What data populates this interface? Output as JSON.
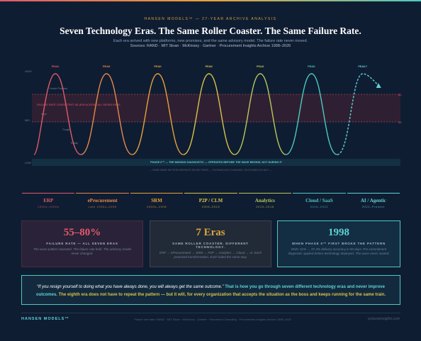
{
  "header": {
    "kicker": "HANSEN MODELS™ — 27-YEAR ARCHIVE ANALYSIS",
    "title": "Seven Technology Eras. The Same Roller Coaster. The Same Failure Rate.",
    "subtitle": "Each era arrived with new platforms, new promises, and the same advisory model. The failure rate never moved.",
    "sources": "Sources: RAND · MIT Sloan · McKinsey · Gartner · Procurement Insights Archive 1998–2026"
  },
  "diagram": {
    "levels": [
      "HIGH",
      "MID",
      "LOW"
    ],
    "annotations": [
      "Vendor Promises",
      "Hype",
      "Trough",
      "Reality"
    ],
    "failure_band": "FAILURE RATE CONSISTENT: 55–80% ACROSS ALL SEVEN ERAS",
    "band_marks": [
      "80",
      "55"
    ],
    "phase0_band": "PHASE 0™ — THE MISSING DIAGNOSTIC — OPERATES BEFORE THE WAVE BEGINS, NOT DURING IT",
    "repeat_note": "— SAME WAVE PATTERN REPEATS SEVEN TIMES — TECHNOLOGY CHANGES. OUTCOMES DO NOT —"
  },
  "eras": [
    {
      "peak": "PEAK",
      "name": "ERP",
      "years": "1990s–2000s",
      "color": "#e05a6a"
    },
    {
      "peak": "PEAK",
      "name": "eProcurement",
      "years": "Late 1990s–2005",
      "color": "#e8894a"
    },
    {
      "peak": "PEAK",
      "name": "SRM",
      "years": "2000s–2008",
      "color": "#e8a23a"
    },
    {
      "peak": "PEAK",
      "name": "P2P / CLM",
      "years": "2009–2015",
      "color": "#d9c24a"
    },
    {
      "peak": "PEAK",
      "name": "Analytics",
      "years": "2015–2018",
      "color": "#b8c85a"
    },
    {
      "peak": "PEAK",
      "name": "Cloud / SaaS",
      "years": "2015–2022",
      "color": "#4ec9c0"
    },
    {
      "peak": "PEAK?",
      "name": "AI / Agentic",
      "years": "2022–Present",
      "color": "#5fd3d6"
    }
  ],
  "cards": [
    {
      "value": "55–80%",
      "label": "FAILURE RATE — ALL SEVEN ERAS",
      "text": "The wave pattern repeated. The failure rate held. The advisory model never changed."
    },
    {
      "value": "7 Eras",
      "label": "SAME ROLLER COASTER. DIFFERENT TECHNOLOGY.",
      "text": "ERP → eProcurement → SRM → P2P → Analytics → Cloud → AI. Each promised transformation. Each failed the same way."
    },
    {
      "value": "1998",
      "label": "WHEN PHASE 0™ FIRST BROKE THE PATTERN",
      "text": "DND: 51% → 97.3% delivery accuracy in 90 days. Pre-commitment diagnostic applied before technology deployed. The wave never started."
    }
  ],
  "quote": {
    "quote": "“If you resign yourself to doing what you have always done, you will always get the same outcome.”",
    "emphasis": "That is how you go through seven different technology eras and never improve outcomes.",
    "conclusion": "The eighth era does not have to repeat the pattern — but it will, for every organization that accepts the situation as the boss and keeps running for the same train."
  },
  "footer": {
    "brand": "HANSEN MODELS™",
    "note": "Failure rate data: RAND · MIT Sloan · McKinsey · Gartner · Panorama Consulting · Procurement Insights Archive 1998–2026",
    "site": "procureinsights.com"
  }
}
